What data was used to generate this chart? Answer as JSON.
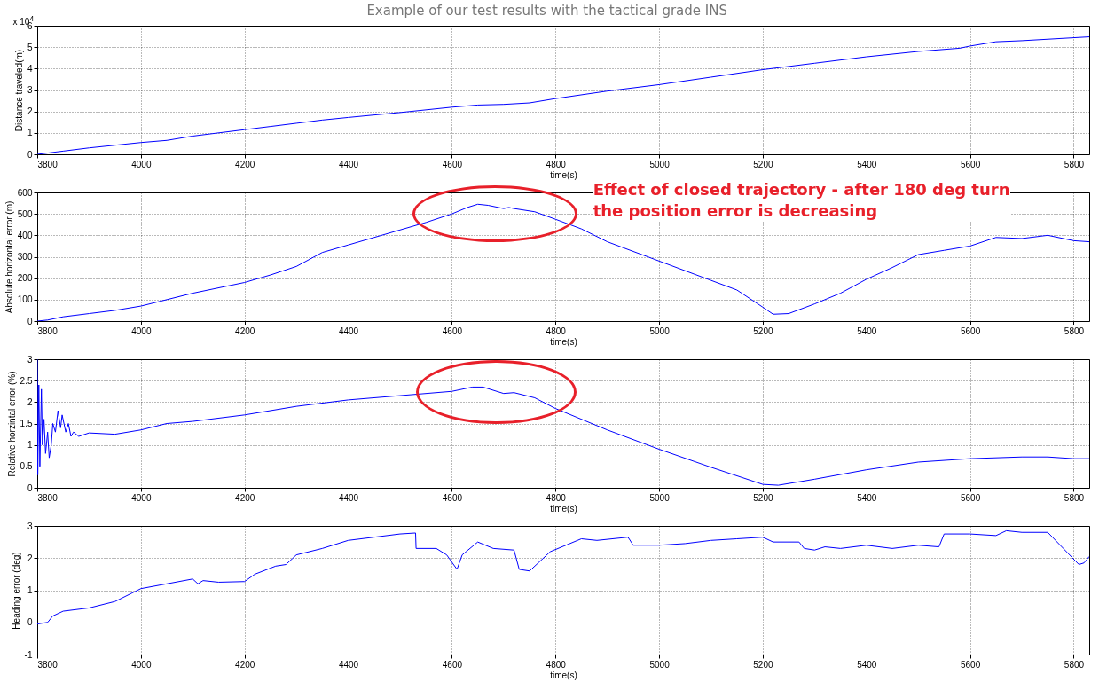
{
  "chart_data": [
    {
      "type": "line",
      "title": "Example of our test results with the tactical grade INS",
      "xlabel": "time(s)",
      "ylabel": "Distance traveled(m)",
      "annotations": [
        "x 10$^{4}$"
      ],
      "xlim": [
        3800,
        5830
      ],
      "xticks": [
        3800,
        4000,
        4200,
        4400,
        4600,
        4800,
        5000,
        5200,
        5400,
        5600,
        5800
      ],
      "ylim": [
        0,
        6
      ],
      "yticks": [
        0,
        1,
        2,
        3,
        4,
        5,
        6
      ],
      "grid": true,
      "series": [
        {
          "color": "#0000ff",
          "x": [
            3800,
            3850,
            3900,
            4000,
            4050,
            4100,
            4200,
            4250,
            4300,
            4350,
            4400,
            4500,
            4600,
            4650,
            4700,
            4750,
            4800,
            4900,
            5000,
            5100,
            5200,
            5300,
            5400,
            5500,
            5580,
            5600,
            5650,
            5700,
            5830
          ],
          "values": [
            0,
            0.15,
            0.3,
            0.55,
            0.65,
            0.85,
            1.15,
            1.3,
            1.45,
            1.6,
            1.72,
            1.95,
            2.2,
            2.3,
            2.33,
            2.4,
            2.6,
            2.95,
            3.25,
            3.6,
            3.95,
            4.25,
            4.55,
            4.8,
            4.95,
            5.05,
            5.25,
            5.3,
            5.48
          ]
        }
      ]
    },
    {
      "type": "line",
      "xlabel": "time(s)",
      "ylabel": "Absolute horizontal error (m)",
      "annotations": [
        "Effect of closed trajectory - after 180 deg turn the position error is decreasing"
      ],
      "xlim": [
        3800,
        5830
      ],
      "xticks": [
        3800,
        4000,
        4200,
        4400,
        4600,
        4800,
        5000,
        5200,
        5400,
        5600,
        5800
      ],
      "ylim": [
        0,
        600
      ],
      "yticks": [
        0,
        100,
        200,
        300,
        400,
        500,
        600
      ],
      "grid": true,
      "series": [
        {
          "color": "#0000ff",
          "x": [
            3800,
            3820,
            3850,
            3900,
            3950,
            4000,
            4050,
            4100,
            4200,
            4250,
            4300,
            4350,
            4400,
            4450,
            4500,
            4550,
            4600,
            4630,
            4650,
            4670,
            4700,
            4710,
            4720,
            4760,
            4800,
            4850,
            4900,
            5000,
            5100,
            5150,
            5200,
            5220,
            5250,
            5300,
            5350,
            5400,
            5450,
            5500,
            5550,
            5600,
            5650,
            5700,
            5750,
            5800,
            5830
          ],
          "values": [
            0,
            5,
            20,
            35,
            50,
            70,
            100,
            130,
            180,
            215,
            255,
            320,
            355,
            390,
            425,
            460,
            500,
            530,
            545,
            540,
            525,
            530,
            525,
            510,
            475,
            430,
            370,
            280,
            190,
            145,
            65,
            32,
            35,
            80,
            130,
            195,
            250,
            310,
            330,
            350,
            390,
            385,
            400,
            375,
            370
          ]
        }
      ]
    },
    {
      "type": "line",
      "xlabel": "time(s)",
      "ylabel": "Relative horzintal error (%)",
      "xlim": [
        3800,
        5830
      ],
      "xticks": [
        3800,
        4000,
        4200,
        4400,
        4600,
        4800,
        5000,
        5200,
        5400,
        5600,
        5800
      ],
      "ylim": [
        0,
        3
      ],
      "yticks": [
        0,
        0.5,
        1,
        1.5,
        2,
        2.5,
        3
      ],
      "grid": true,
      "series": [
        {
          "color": "#0000ff",
          "x": [
            3800,
            3801,
            3803,
            3805,
            3808,
            3810,
            3813,
            3816,
            3820,
            3823,
            3827,
            3830,
            3835,
            3840,
            3845,
            3848,
            3855,
            3860,
            3865,
            3870,
            3880,
            3900,
            3950,
            4000,
            4050,
            4100,
            4200,
            4300,
            4400,
            4500,
            4600,
            4640,
            4660,
            4700,
            4720,
            4760,
            4800,
            4900,
            5000,
            5100,
            5200,
            5230,
            5300,
            5400,
            5500,
            5600,
            5700,
            5750,
            5800,
            5830
          ],
          "values": [
            3,
            0.3,
            2.4,
            0.5,
            2.3,
            1.0,
            1.6,
            0.8,
            1.3,
            0.7,
            1.0,
            1.5,
            1.3,
            1.8,
            1.4,
            1.7,
            1.3,
            1.5,
            1.2,
            1.3,
            1.2,
            1.28,
            1.25,
            1.35,
            1.5,
            1.55,
            1.7,
            1.9,
            2.05,
            2.15,
            2.25,
            2.35,
            2.35,
            2.2,
            2.22,
            2.1,
            1.85,
            1.35,
            0.9,
            0.48,
            0.08,
            0.06,
            0.2,
            0.42,
            0.6,
            0.68,
            0.72,
            0.72,
            0.68,
            0.68
          ]
        }
      ]
    },
    {
      "type": "line",
      "xlabel": "time(s)",
      "ylabel": "Heading error (deg)",
      "xlim": [
        3800,
        5830
      ],
      "xticks": [
        3800,
        4000,
        4200,
        4400,
        4600,
        4800,
        5000,
        5200,
        5400,
        5600,
        5800
      ],
      "ylim": [
        -1,
        3
      ],
      "yticks": [
        -1,
        0,
        1,
        2,
        3
      ],
      "grid": true,
      "series": [
        {
          "color": "#0000ff",
          "x": [
            3800,
            3820,
            3830,
            3850,
            3900,
            3950,
            4000,
            4050,
            4100,
            4110,
            4120,
            4150,
            4200,
            4220,
            4260,
            4280,
            4300,
            4350,
            4400,
            4450,
            4500,
            4530,
            4531,
            4570,
            4590,
            4610,
            4620,
            4650,
            4680,
            4720,
            4730,
            4750,
            4790,
            4850,
            4880,
            4940,
            4950,
            5000,
            5050,
            5100,
            5150,
            5200,
            5220,
            5270,
            5280,
            5300,
            5320,
            5350,
            5400,
            5450,
            5500,
            5540,
            5550,
            5600,
            5650,
            5670,
            5700,
            5750,
            5780,
            5810,
            5820,
            5830
          ],
          "values": [
            -0.05,
            0.0,
            0.2,
            0.35,
            0.45,
            0.65,
            1.05,
            1.2,
            1.35,
            1.2,
            1.3,
            1.25,
            1.27,
            1.5,
            1.75,
            1.8,
            2.1,
            2.3,
            2.55,
            2.65,
            2.75,
            2.78,
            2.3,
            2.3,
            2.1,
            1.65,
            2.1,
            2.5,
            2.3,
            2.25,
            1.65,
            1.6,
            2.2,
            2.6,
            2.55,
            2.65,
            2.4,
            2.4,
            2.45,
            2.55,
            2.6,
            2.65,
            2.5,
            2.5,
            2.3,
            2.25,
            2.35,
            2.3,
            2.4,
            2.3,
            2.4,
            2.35,
            2.75,
            2.75,
            2.7,
            2.85,
            2.8,
            2.8,
            2.3,
            1.8,
            1.85,
            2.05
          ]
        }
      ]
    }
  ]
}
